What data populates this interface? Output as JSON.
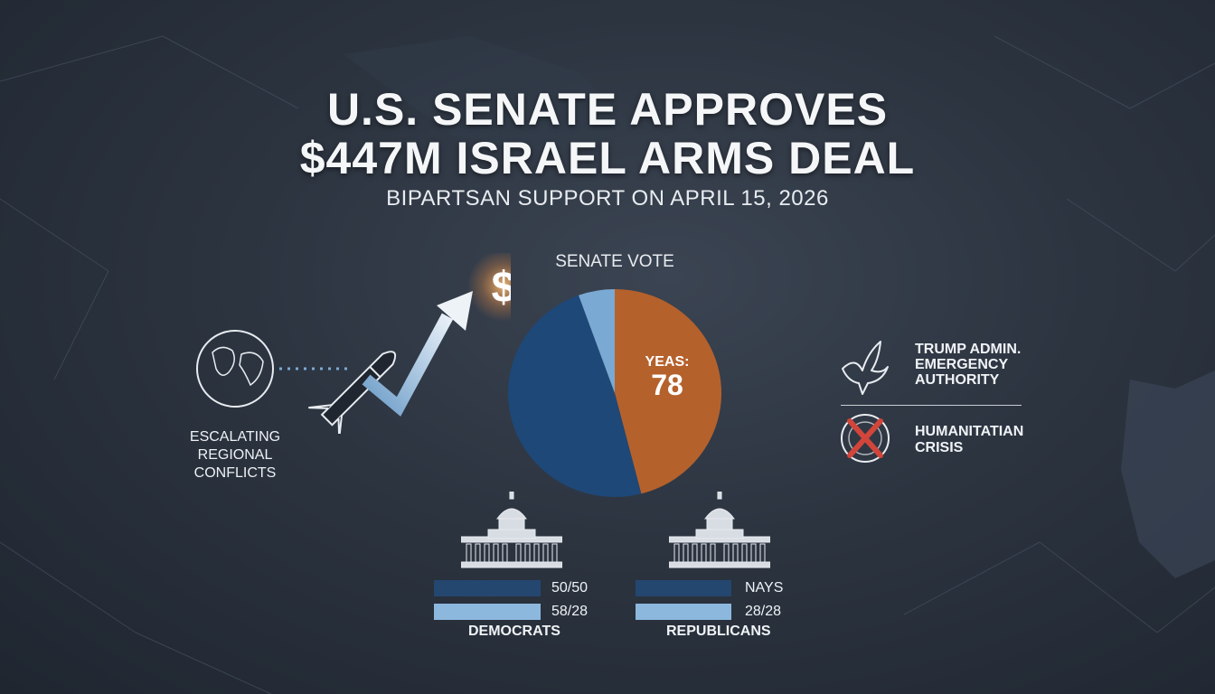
{
  "headline": {
    "line1": "U.S. SENATE APPROVES",
    "line2": "$447M ISRAEL ARMS DEAL",
    "subtitle": "BIPARTSAN SUPPORT ON APRIL 15, 2026"
  },
  "left_panel": {
    "dollar_symbol": "$",
    "conflict_label": [
      "ESCALATING",
      "REGIONAL",
      "CONFLICTS"
    ]
  },
  "pie": {
    "title": "SENATE VOTE",
    "yeas_label": "YEAS:",
    "yeas_value": "78",
    "slices": [
      {
        "fraction": 0.46,
        "color": "#b5612c"
      },
      {
        "fraction": 0.485,
        "color": "#1e4878"
      },
      {
        "fraction": 0.055,
        "color": "#7aaad3"
      }
    ]
  },
  "right_panel": {
    "admin_label": [
      "TRUMP ADMIN.",
      "EMERGENCY",
      "AUTHORITY"
    ],
    "crisis_label": [
      "HUMANITATIAN",
      "CRISIS"
    ]
  },
  "bottom": {
    "democrats": {
      "label": "DEMOCRATS",
      "row1": "50/50",
      "row2": "58/28"
    },
    "republicans": {
      "label": "REPUBLICANS",
      "row1": "NAYS",
      "row2": "28/28"
    }
  },
  "colors": {
    "accent_orange": "#b5612c",
    "accent_navy": "#1e4878",
    "accent_lightblue": "#7aaad3",
    "crisis_red": "#d2453a",
    "dollar_glow": "#f4c07a"
  }
}
